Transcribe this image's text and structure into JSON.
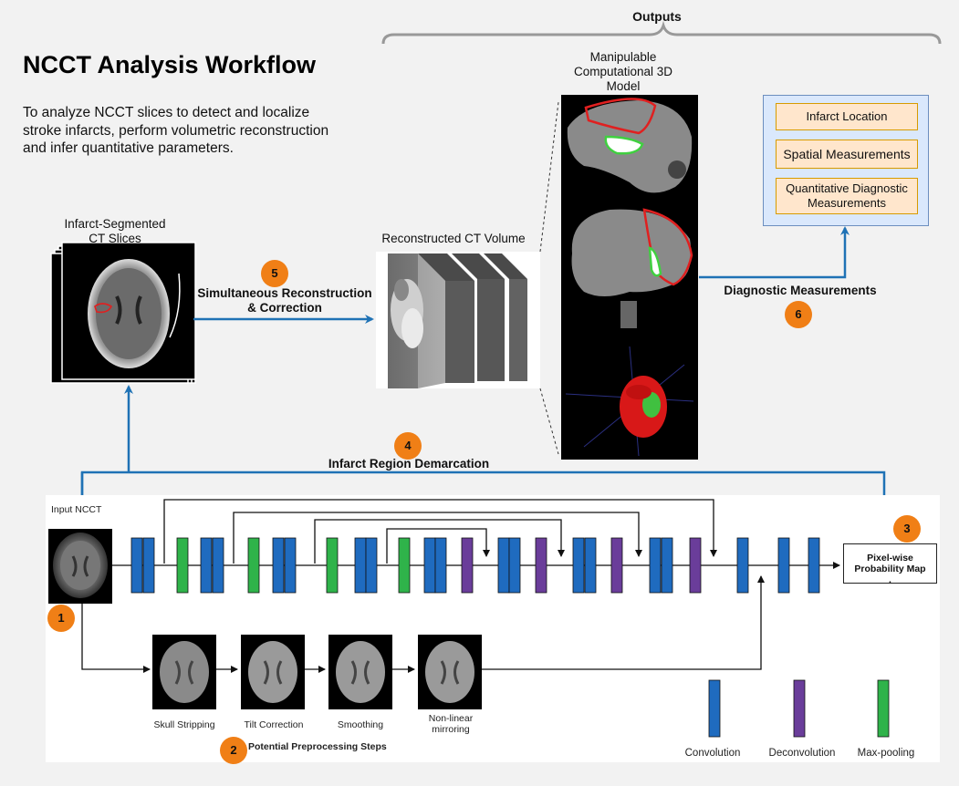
{
  "header": {
    "title": "NCCT Analysis Workflow",
    "description": "To analyze NCCT slices to detect and localize stroke infarcts, perform volumetric reconstruction and infer quantitative parameters."
  },
  "outputs": {
    "label": "Outputs",
    "model_label": "Manipulable Computational 3D Model",
    "items": [
      "Infarct Location",
      "Spatial Measurements",
      "Quantitative Diagnostic Measurements"
    ]
  },
  "stages": {
    "segmented_label": "Infarct-Segmented CT Slices",
    "volume_label": "Reconstructed CT Volume",
    "reconstruction_label": "Simultaneous Reconstruction & Correction",
    "diagnostic_label": "Diagnostic Measurements",
    "demarcation_label": "Infarct Region Demarcation"
  },
  "badges": [
    "1",
    "2",
    "3",
    "4",
    "5",
    "6"
  ],
  "network": {
    "input_label": "Input NCCT",
    "output_label": "Pixel-wise Probability Map",
    "output_suffix": ".",
    "preprocessing_title": "Potential Preprocessing Steps",
    "preprocessing_steps": [
      "Skull Stripping",
      "Tilt Correction",
      "Smoothing",
      "Non-linear mirroring"
    ],
    "legend": [
      {
        "label": "Convolution",
        "color": "#1f6bbf"
      },
      {
        "label": "Deconvolution",
        "color": "#6a3d9a"
      },
      {
        "label": "Max-pooling",
        "color": "#2fb34a"
      }
    ]
  },
  "colors": {
    "arrow": "#1f72b5",
    "badge": "#f07f16",
    "conv": "#1f6bbf",
    "deconv": "#6a3d9a",
    "pool": "#2fb34a",
    "infarct_outline": "#e02020",
    "infarct_fill": "#40d040"
  }
}
